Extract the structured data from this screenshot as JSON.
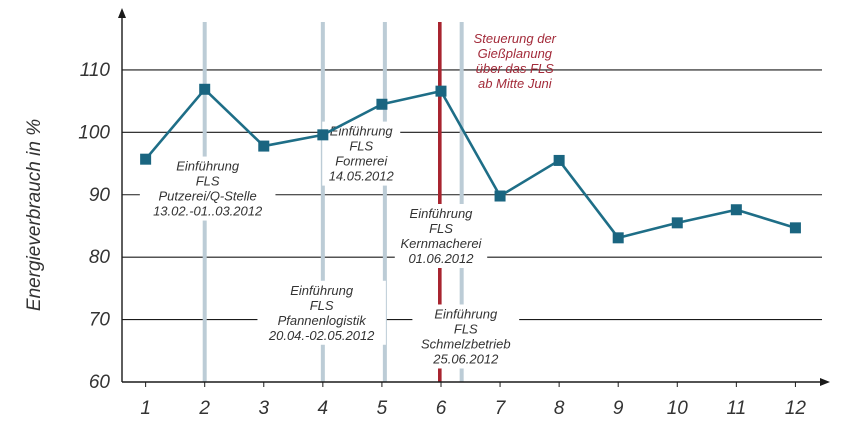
{
  "colors": {
    "line": "#1e6e87",
    "marker": "#1a6580",
    "milestone": "#bcccd6",
    "highlight": "#a8242f",
    "red_text": "#a32b3a",
    "grid": "#1a1a1a"
  },
  "chart_data": {
    "type": "line",
    "title": "",
    "xlabel": "",
    "ylabel": "Energieverbrauch in %",
    "x": [
      1,
      2,
      3,
      4,
      5,
      6,
      7,
      8,
      9,
      10,
      11,
      12
    ],
    "x_tick_labels": [
      "1",
      "2",
      "3",
      "4",
      "5",
      "6",
      "7",
      "8",
      "9",
      "10",
      "11",
      "12"
    ],
    "y_ticks": [
      60,
      70,
      80,
      90,
      100,
      110
    ],
    "y_tick_labels": [
      "60",
      "70",
      "80",
      "90",
      "100",
      "110"
    ],
    "ylim": [
      60,
      118
    ],
    "xlim": [
      0.6,
      12.45
    ],
    "grid": "horizontal",
    "series": [
      {
        "values": [
          95.7,
          106.9,
          97.8,
          99.6,
          104.5,
          106.6,
          89.8,
          95.5,
          83.1,
          85.5,
          87.6,
          84.7
        ]
      }
    ],
    "milestone_lines": [
      {
        "x": 2.0,
        "highlight": false
      },
      {
        "x": 4.0,
        "highlight": false
      },
      {
        "x": 5.05,
        "highlight": false
      },
      {
        "x": 5.98,
        "highlight": true
      },
      {
        "x": 6.35,
        "highlight": false
      }
    ],
    "annotations": [
      {
        "lines": [
          "Einführung",
          "FLS",
          "Putzerei/Q-Stelle",
          "13.02.-01..03.2012"
        ],
        "x": 2.05,
        "y_top": 95.8,
        "style": "normal"
      },
      {
        "lines": [
          "Einführung",
          "FLS",
          "Formerei",
          "14.05.2012"
        ],
        "x": 4.65,
        "y_top": 101.4,
        "style": "normal"
      },
      {
        "lines": [
          "Einführung",
          "FLS",
          "Kernmacherei",
          "01.06.2012"
        ],
        "x": 6.0,
        "y_top": 88.2,
        "style": "normal"
      },
      {
        "lines": [
          "Einführung",
          "FLS",
          "Pfannenlogistik",
          "20.04.-02.05.2012"
        ],
        "x": 3.98,
        "y_top": 75.9,
        "style": "normal"
      },
      {
        "lines": [
          "Einführung",
          "FLS",
          "Schmelzbetrieb",
          "25.06.2012"
        ],
        "x": 6.42,
        "y_top": 72.1,
        "style": "normal"
      },
      {
        "lines": [
          "Steuerung der",
          "Gießplanung",
          "über das FLS",
          "ab Mitte Juni"
        ],
        "x": 7.25,
        "y_top": 116.2,
        "style": "red"
      }
    ]
  }
}
